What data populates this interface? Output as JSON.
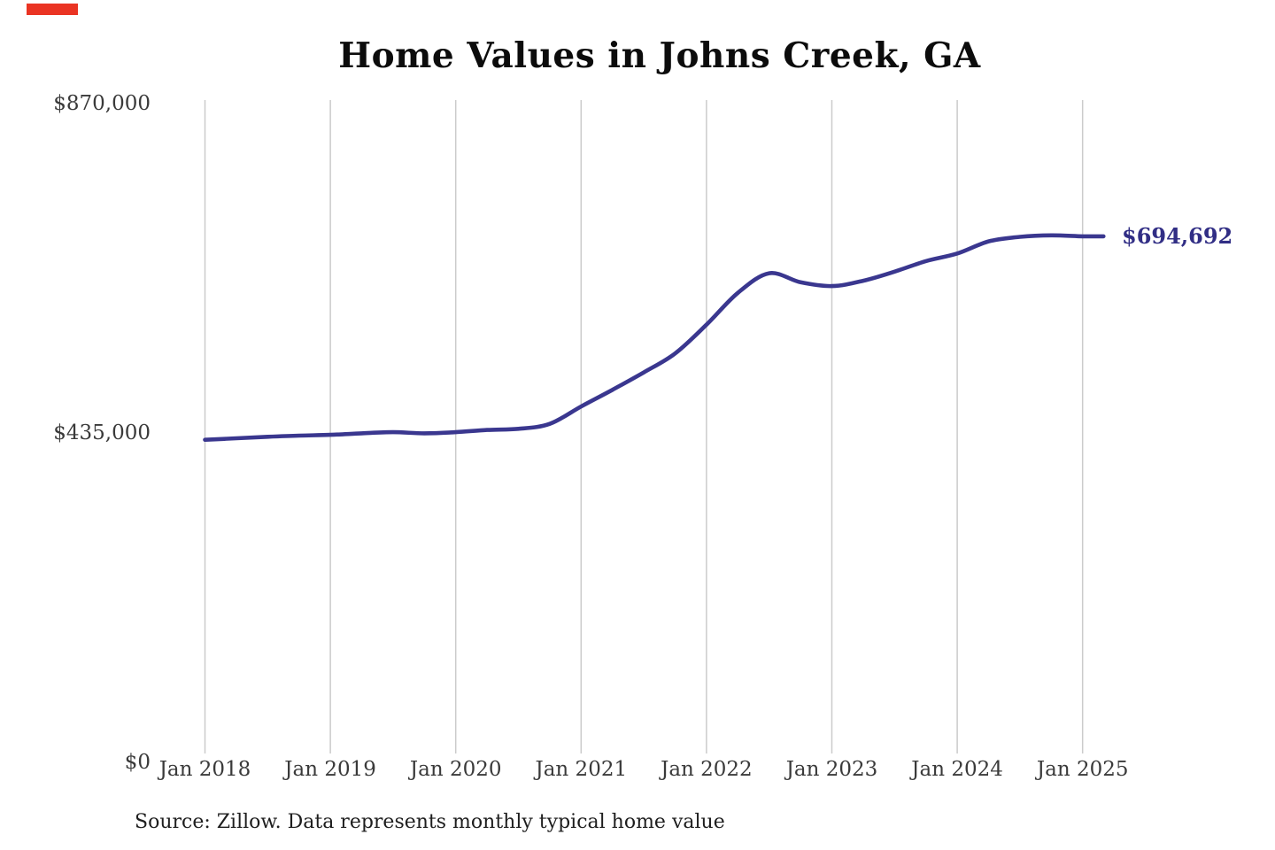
{
  "page": {
    "background": "#ffffff"
  },
  "marker": {
    "color": "#ea3423"
  },
  "title": {
    "text": "Home Values in Johns Creek, GA",
    "color": "#0c0c0c"
  },
  "source_note": {
    "text": "Source: Zillow. Data represents monthly typical home value",
    "color": "#1e1e1e"
  },
  "end_label": {
    "text": "$694,692",
    "color": "#312e85"
  },
  "chart_data": {
    "type": "line",
    "title": "Home Values in Johns Creek, GA",
    "series_name": "Typical home value (USD)",
    "line_color": "#3a378f",
    "grid_color": "#cbcbcb",
    "tick_color": "#3a3a3a",
    "grid": "vertical-only",
    "legend": "none",
    "ylim": [
      0,
      870000
    ],
    "y_ticks": [
      {
        "label": "$0",
        "value": 0
      },
      {
        "label": "$435,000",
        "value": 435000
      },
      {
        "label": "$870,000",
        "value": 870000
      }
    ],
    "x_ticks": [
      "Jan 2018",
      "Jan 2019",
      "Jan 2020",
      "Jan 2021",
      "Jan 2022",
      "Jan 2023",
      "Jan 2024",
      "Jan 2025"
    ],
    "final_value": 694692,
    "points": [
      [
        "2018-01",
        426000
      ],
      [
        "2018-04",
        428000
      ],
      [
        "2018-07",
        430000
      ],
      [
        "2018-10",
        431500
      ],
      [
        "2019-01",
        432500
      ],
      [
        "2019-04",
        434500
      ],
      [
        "2019-07",
        436000
      ],
      [
        "2019-10",
        434500
      ],
      [
        "2020-01",
        436000
      ],
      [
        "2020-04",
        439000
      ],
      [
        "2020-07",
        440500
      ],
      [
        "2020-10",
        447000
      ],
      [
        "2021-01",
        470000
      ],
      [
        "2021-04",
        492000
      ],
      [
        "2021-07",
        515000
      ],
      [
        "2021-10",
        540000
      ],
      [
        "2022-01",
        578000
      ],
      [
        "2022-04",
        620000
      ],
      [
        "2022-07",
        646000
      ],
      [
        "2022-10",
        634000
      ],
      [
        "2023-01",
        629000
      ],
      [
        "2023-04",
        636000
      ],
      [
        "2023-07",
        648000
      ],
      [
        "2023-10",
        662000
      ],
      [
        "2024-01",
        672000
      ],
      [
        "2024-04",
        688000
      ],
      [
        "2024-07",
        694000
      ],
      [
        "2024-10",
        696000
      ],
      [
        "2025-01",
        694692
      ],
      [
        "2025-03",
        694692
      ]
    ]
  }
}
